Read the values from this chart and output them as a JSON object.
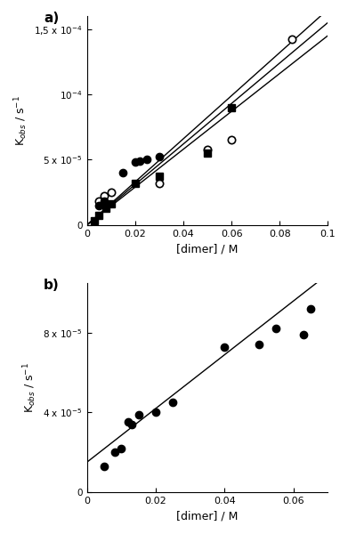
{
  "panel_a": {
    "open_circles": {
      "x": [
        0.005,
        0.007,
        0.01,
        0.03,
        0.05,
        0.06,
        0.085
      ],
      "y": [
        1.8e-05,
        2.2e-05,
        2.5e-05,
        3.2e-05,
        5.8e-05,
        6.5e-05,
        0.000142
      ]
    },
    "filled_circles": {
      "x": [
        0.005,
        0.007,
        0.015,
        0.02,
        0.022,
        0.025,
        0.03
      ],
      "y": [
        1.5e-05,
        1.8e-05,
        4e-05,
        4.8e-05,
        4.9e-05,
        5e-05,
        5.2e-05
      ]
    },
    "filled_squares": {
      "x": [
        0.003,
        0.005,
        0.008,
        0.01,
        0.02,
        0.03,
        0.05,
        0.06
      ],
      "y": [
        3e-06,
        7e-06,
        1.3e-05,
        1.6e-05,
        3.2e-05,
        3.7e-05,
        5.5e-05,
        9e-05
      ]
    },
    "line_open_circles": {
      "slope": 0.00165,
      "intercept": 0.0
    },
    "line_filled_circles": {
      "slope": 0.00155,
      "intercept": 0.0
    },
    "line_filled_squares": {
      "slope": 0.00145,
      "intercept": 0.0
    },
    "xlim": [
      0,
      0.1
    ],
    "ylim": [
      0,
      0.00016
    ],
    "xlabel": "[dimer] / M",
    "ylabel": "K$_{obs}$ / s$^{-1}$",
    "yticks": [
      0,
      5e-05,
      0.0001,
      0.00015
    ],
    "ytick_labels": [
      "0",
      "5 x 10$^{-5}$",
      "10$^{-4}$",
      "1,5 x 10$^{-4}$"
    ],
    "xticks": [
      0,
      0.02,
      0.04,
      0.06,
      0.08,
      0.1
    ]
  },
  "panel_b": {
    "filled_circles": {
      "x": [
        0.005,
        0.008,
        0.01,
        0.012,
        0.013,
        0.015,
        0.02,
        0.025,
        0.04,
        0.05,
        0.055,
        0.063,
        0.065
      ],
      "y": [
        1.3e-05,
        2e-05,
        2.2e-05,
        3.5e-05,
        3.4e-05,
        3.9e-05,
        4e-05,
        4.5e-05,
        7.3e-05,
        7.4e-05,
        8.2e-05,
        7.9e-05,
        9.2e-05
      ]
    },
    "line": {
      "slope": 0.00135,
      "intercept": 1.5e-05
    },
    "xlim": [
      0,
      0.07
    ],
    "ylim": [
      0,
      0.000105
    ],
    "xlabel": "[dimer] / M",
    "ylabel": "K$_{obs}$ / s$^{-1}$",
    "yticks": [
      0,
      4e-05,
      8e-05
    ],
    "ytick_labels": [
      "0",
      "4 x 10$^{-5}$",
      "8 x 10$^{-5}$"
    ],
    "xticks": [
      0,
      0.02,
      0.04,
      0.06
    ]
  }
}
